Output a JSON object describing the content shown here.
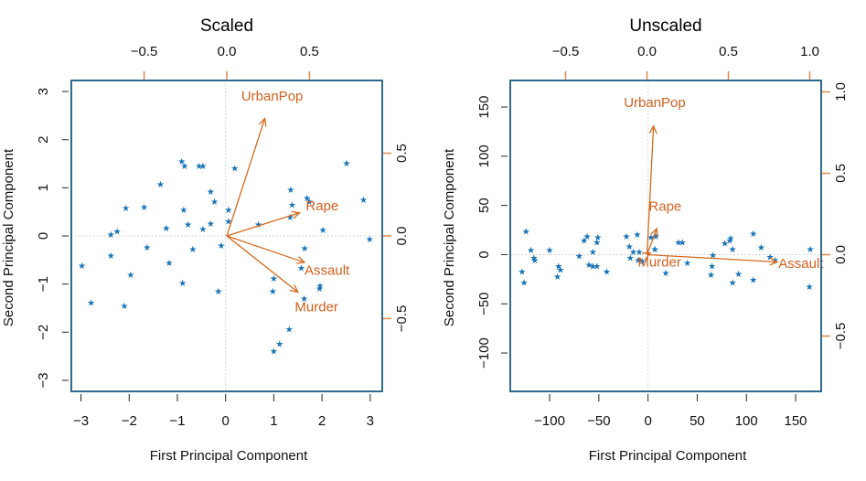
{
  "chart_data": [
    {
      "type": "scatter",
      "title": "Scaled",
      "xlabel": "First Principal Component",
      "ylabel": "Second Principal Component",
      "xlim": [
        -3.2,
        3.25
      ],
      "ylim": [
        -3.23,
        3.23
      ],
      "xticks": [
        -3,
        -2,
        -1,
        0,
        1,
        2,
        3
      ],
      "yticks": [
        -3,
        -2,
        -1,
        0,
        1,
        2,
        3
      ],
      "top_axis": {
        "lim": [
          -0.94,
          0.94
        ],
        "ticks": [
          -0.5,
          0.0,
          0.5
        ],
        "labels": [
          "−0.5",
          "0.0",
          "0.5"
        ]
      },
      "right_axis": {
        "lim": [
          -0.94,
          0.94
        ],
        "ticks": [
          -0.5,
          0.0,
          0.5
        ],
        "labels": [
          "−0.5",
          "0.0",
          "0.5"
        ]
      },
      "grid": false,
      "zero_lines": true,
      "points": [
        [
          -2.98,
          -0.61
        ],
        [
          -2.79,
          -1.38
        ],
        [
          -2.38,
          -0.4
        ],
        [
          -2.38,
          0.04
        ],
        [
          -2.25,
          0.1
        ],
        [
          -2.07,
          0.59
        ],
        [
          -1.97,
          -0.8
        ],
        [
          -2.1,
          -1.44
        ],
        [
          -1.69,
          0.61
        ],
        [
          -1.63,
          -0.23
        ],
        [
          -1.35,
          1.08
        ],
        [
          -1.23,
          0.17
        ],
        [
          -1.17,
          -0.55
        ],
        [
          -0.91,
          1.56
        ],
        [
          -0.85,
          1.46
        ],
        [
          -0.55,
          1.46
        ],
        [
          -0.47,
          1.46
        ],
        [
          -0.68,
          -0.27
        ],
        [
          -0.87,
          0.55
        ],
        [
          -0.78,
          0.25
        ],
        [
          -0.31,
          0.93
        ],
        [
          -0.23,
          0.72
        ],
        [
          -0.31,
          0.27
        ],
        [
          -0.47,
          0.15
        ],
        [
          -0.89,
          -0.97
        ],
        [
          -0.15,
          -1.14
        ],
        [
          -0.09,
          -0.19
        ],
        [
          0.06,
          0.31
        ],
        [
          0.06,
          0.55
        ],
        [
          0.19,
          1.42
        ],
        [
          0.68,
          0.25
        ],
        [
          1.35,
          0.97
        ],
        [
          1.69,
          0.8
        ],
        [
          1.74,
          0.72
        ],
        [
          1.38,
          0.66
        ],
        [
          1.34,
          0.4
        ],
        [
          2.02,
          0.13
        ],
        [
          1.64,
          -0.25
        ],
        [
          2.51,
          1.52
        ],
        [
          2.86,
          0.76
        ],
        [
          2.99,
          -0.06
        ],
        [
          1.0,
          -0.87
        ],
        [
          0.98,
          -1.14
        ],
        [
          1.57,
          -0.66
        ],
        [
          1.95,
          -1.08
        ],
        [
          1.63,
          -1.29
        ],
        [
          1.32,
          -1.93
        ],
        [
          1.12,
          -2.23
        ],
        [
          1.0,
          -2.38
        ],
        [
          1.96,
          -1.03
        ]
      ],
      "loadings": [
        {
          "name": "UrbanPop",
          "pc1": 0.23,
          "pc2": 0.71
        },
        {
          "name": "Rape",
          "pc1": 0.44,
          "pc2": 0.14
        },
        {
          "name": "Assault",
          "pc1": 0.47,
          "pc2": -0.16
        },
        {
          "name": "Murder",
          "pc1": 0.43,
          "pc2": -0.34
        }
      ]
    },
    {
      "type": "scatter",
      "title": "Unscaled",
      "xlabel": "First Principal Component",
      "ylabel": "Second Principal Component",
      "xlim": [
        -140,
        176
      ],
      "ylim": [
        -139,
        177
      ],
      "xticks": [
        -100,
        -50,
        0,
        50,
        100,
        150
      ],
      "yticks": [
        -100,
        -50,
        0,
        50,
        100,
        150
      ],
      "top_axis": {
        "lim": [
          -0.84,
          1.07
        ],
        "ticks": [
          -0.5,
          0.0,
          0.5,
          1.0
        ],
        "labels": [
          "−0.5",
          "0.0",
          "0.5",
          "1.0"
        ]
      },
      "right_axis": {
        "lim": [
          -0.84,
          1.07
        ],
        "ticks": [
          -0.5,
          0.0,
          0.5,
          1.0
        ],
        "labels": [
          "−0.5",
          "0.0",
          "0.5",
          "1.0"
        ]
      },
      "grid": false,
      "zero_lines": true,
      "points": [
        [
          -124,
          24
        ],
        [
          -119,
          5
        ],
        [
          -116,
          -3
        ],
        [
          -115,
          -5
        ],
        [
          -128,
          -17
        ],
        [
          -126,
          -28
        ],
        [
          -100,
          5
        ],
        [
          -91,
          -11
        ],
        [
          -89,
          -15
        ],
        [
          -92,
          -22
        ],
        [
          -70,
          -1
        ],
        [
          -65,
          15
        ],
        [
          -62,
          19
        ],
        [
          -51,
          18
        ],
        [
          -52,
          13
        ],
        [
          -56,
          3
        ],
        [
          -60,
          -10
        ],
        [
          -52,
          -11
        ],
        [
          -56,
          -11
        ],
        [
          -42,
          -17
        ],
        [
          -19,
          9
        ],
        [
          -22,
          19
        ],
        [
          -11,
          21
        ],
        [
          -18,
          -3
        ],
        [
          -15,
          3
        ],
        [
          -10,
          -5
        ],
        [
          -9,
          3
        ],
        [
          -6,
          -6
        ],
        [
          7,
          6
        ],
        [
          8,
          19
        ],
        [
          3,
          18
        ],
        [
          7,
          6
        ],
        [
          31,
          13
        ],
        [
          35,
          13
        ],
        [
          18,
          -18
        ],
        [
          40,
          -8
        ],
        [
          66,
          0
        ],
        [
          65,
          -11
        ],
        [
          78,
          12
        ],
        [
          83,
          15
        ],
        [
          84,
          17
        ],
        [
          86,
          6
        ],
        [
          64,
          -20
        ],
        [
          92,
          -19
        ],
        [
          86,
          -28
        ],
        [
          107,
          22
        ],
        [
          115,
          8
        ],
        [
          124,
          -2
        ],
        [
          129,
          -5
        ],
        [
          107,
          -25
        ],
        [
          165,
          6
        ],
        [
          164,
          -32
        ]
      ],
      "loadings": [
        {
          "name": "UrbanPop",
          "pc1": 0.04,
          "pc2": 0.79
        },
        {
          "name": "Rape",
          "pc1": 0.06,
          "pc2": 0.16
        },
        {
          "name": "Murder",
          "pc1": 0.02,
          "pc2": 0.01
        },
        {
          "name": "Assault",
          "pc1": 0.8,
          "pc2": -0.045
        }
      ]
    }
  ],
  "colors": {
    "points": "#1873b8",
    "arrows": "#d46a1e",
    "labels": "#d2601e",
    "frame": "#2f6a8c",
    "top_right_ticks": "#e0884a"
  },
  "point_symbol": "★"
}
